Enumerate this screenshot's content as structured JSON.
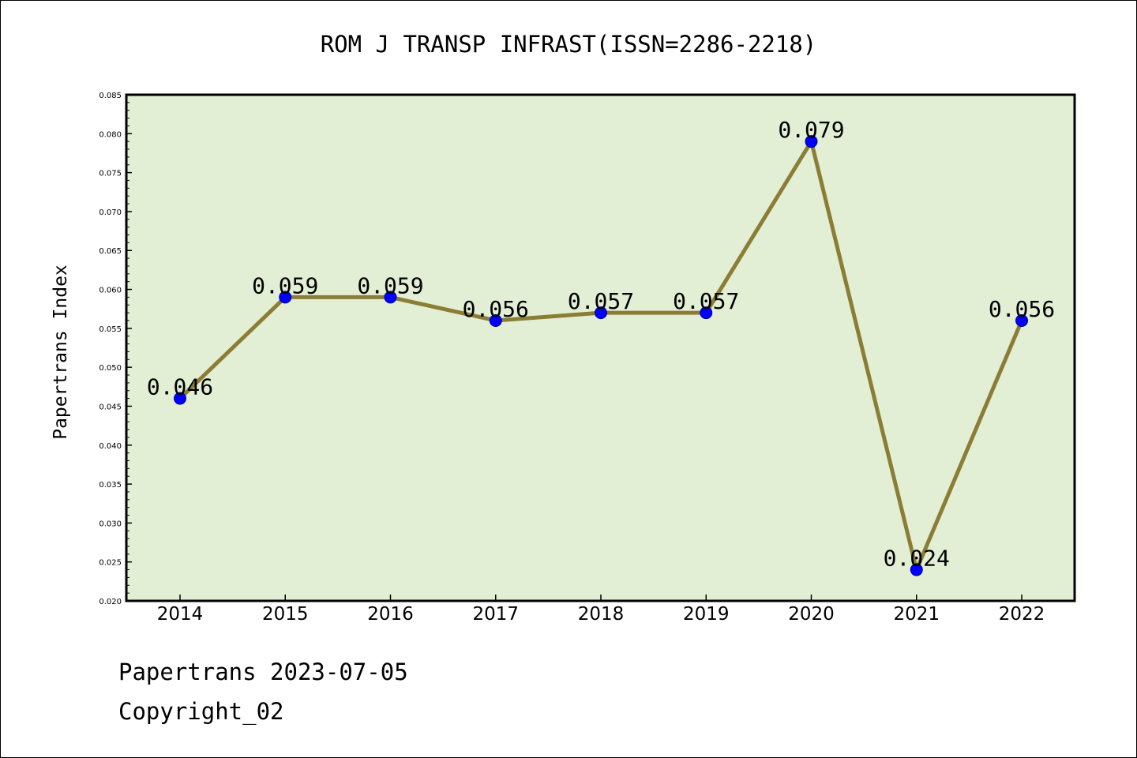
{
  "chart_data": {
    "type": "line",
    "title": "ROM J TRANSP INFRAST(ISSN=2286-2218)",
    "xlabel": "",
    "ylabel": "Papertrans Index",
    "categories": [
      "2014",
      "2015",
      "2016",
      "2017",
      "2018",
      "2019",
      "2020",
      "2021",
      "2022"
    ],
    "values": [
      0.046,
      0.059,
      0.059,
      0.056,
      0.057,
      0.057,
      0.079,
      0.024,
      0.056
    ],
    "data_labels": [
      "0.046",
      "0.059",
      "0.059",
      "0.056",
      "0.057",
      "0.057",
      "0.079",
      "0.024",
      "0.056"
    ],
    "ylim": [
      0.02,
      0.085
    ],
    "y_major_step": 0.005,
    "y_tick_labels": [
      "0.020",
      "0.025",
      "0.030",
      "0.035",
      "0.040",
      "0.045",
      "0.050",
      "0.055",
      "0.060",
      "0.065",
      "0.070",
      "0.075",
      "0.080",
      "0.085"
    ],
    "grid": false,
    "legend": "none",
    "colors": {
      "plot_background": "#e2efd5",
      "line": "#8b7d36",
      "marker": "#0000ff",
      "axis": "#000000"
    }
  },
  "footer": {
    "line1": "Papertrans 2023-07-05",
    "line2": "Copyright_02"
  }
}
